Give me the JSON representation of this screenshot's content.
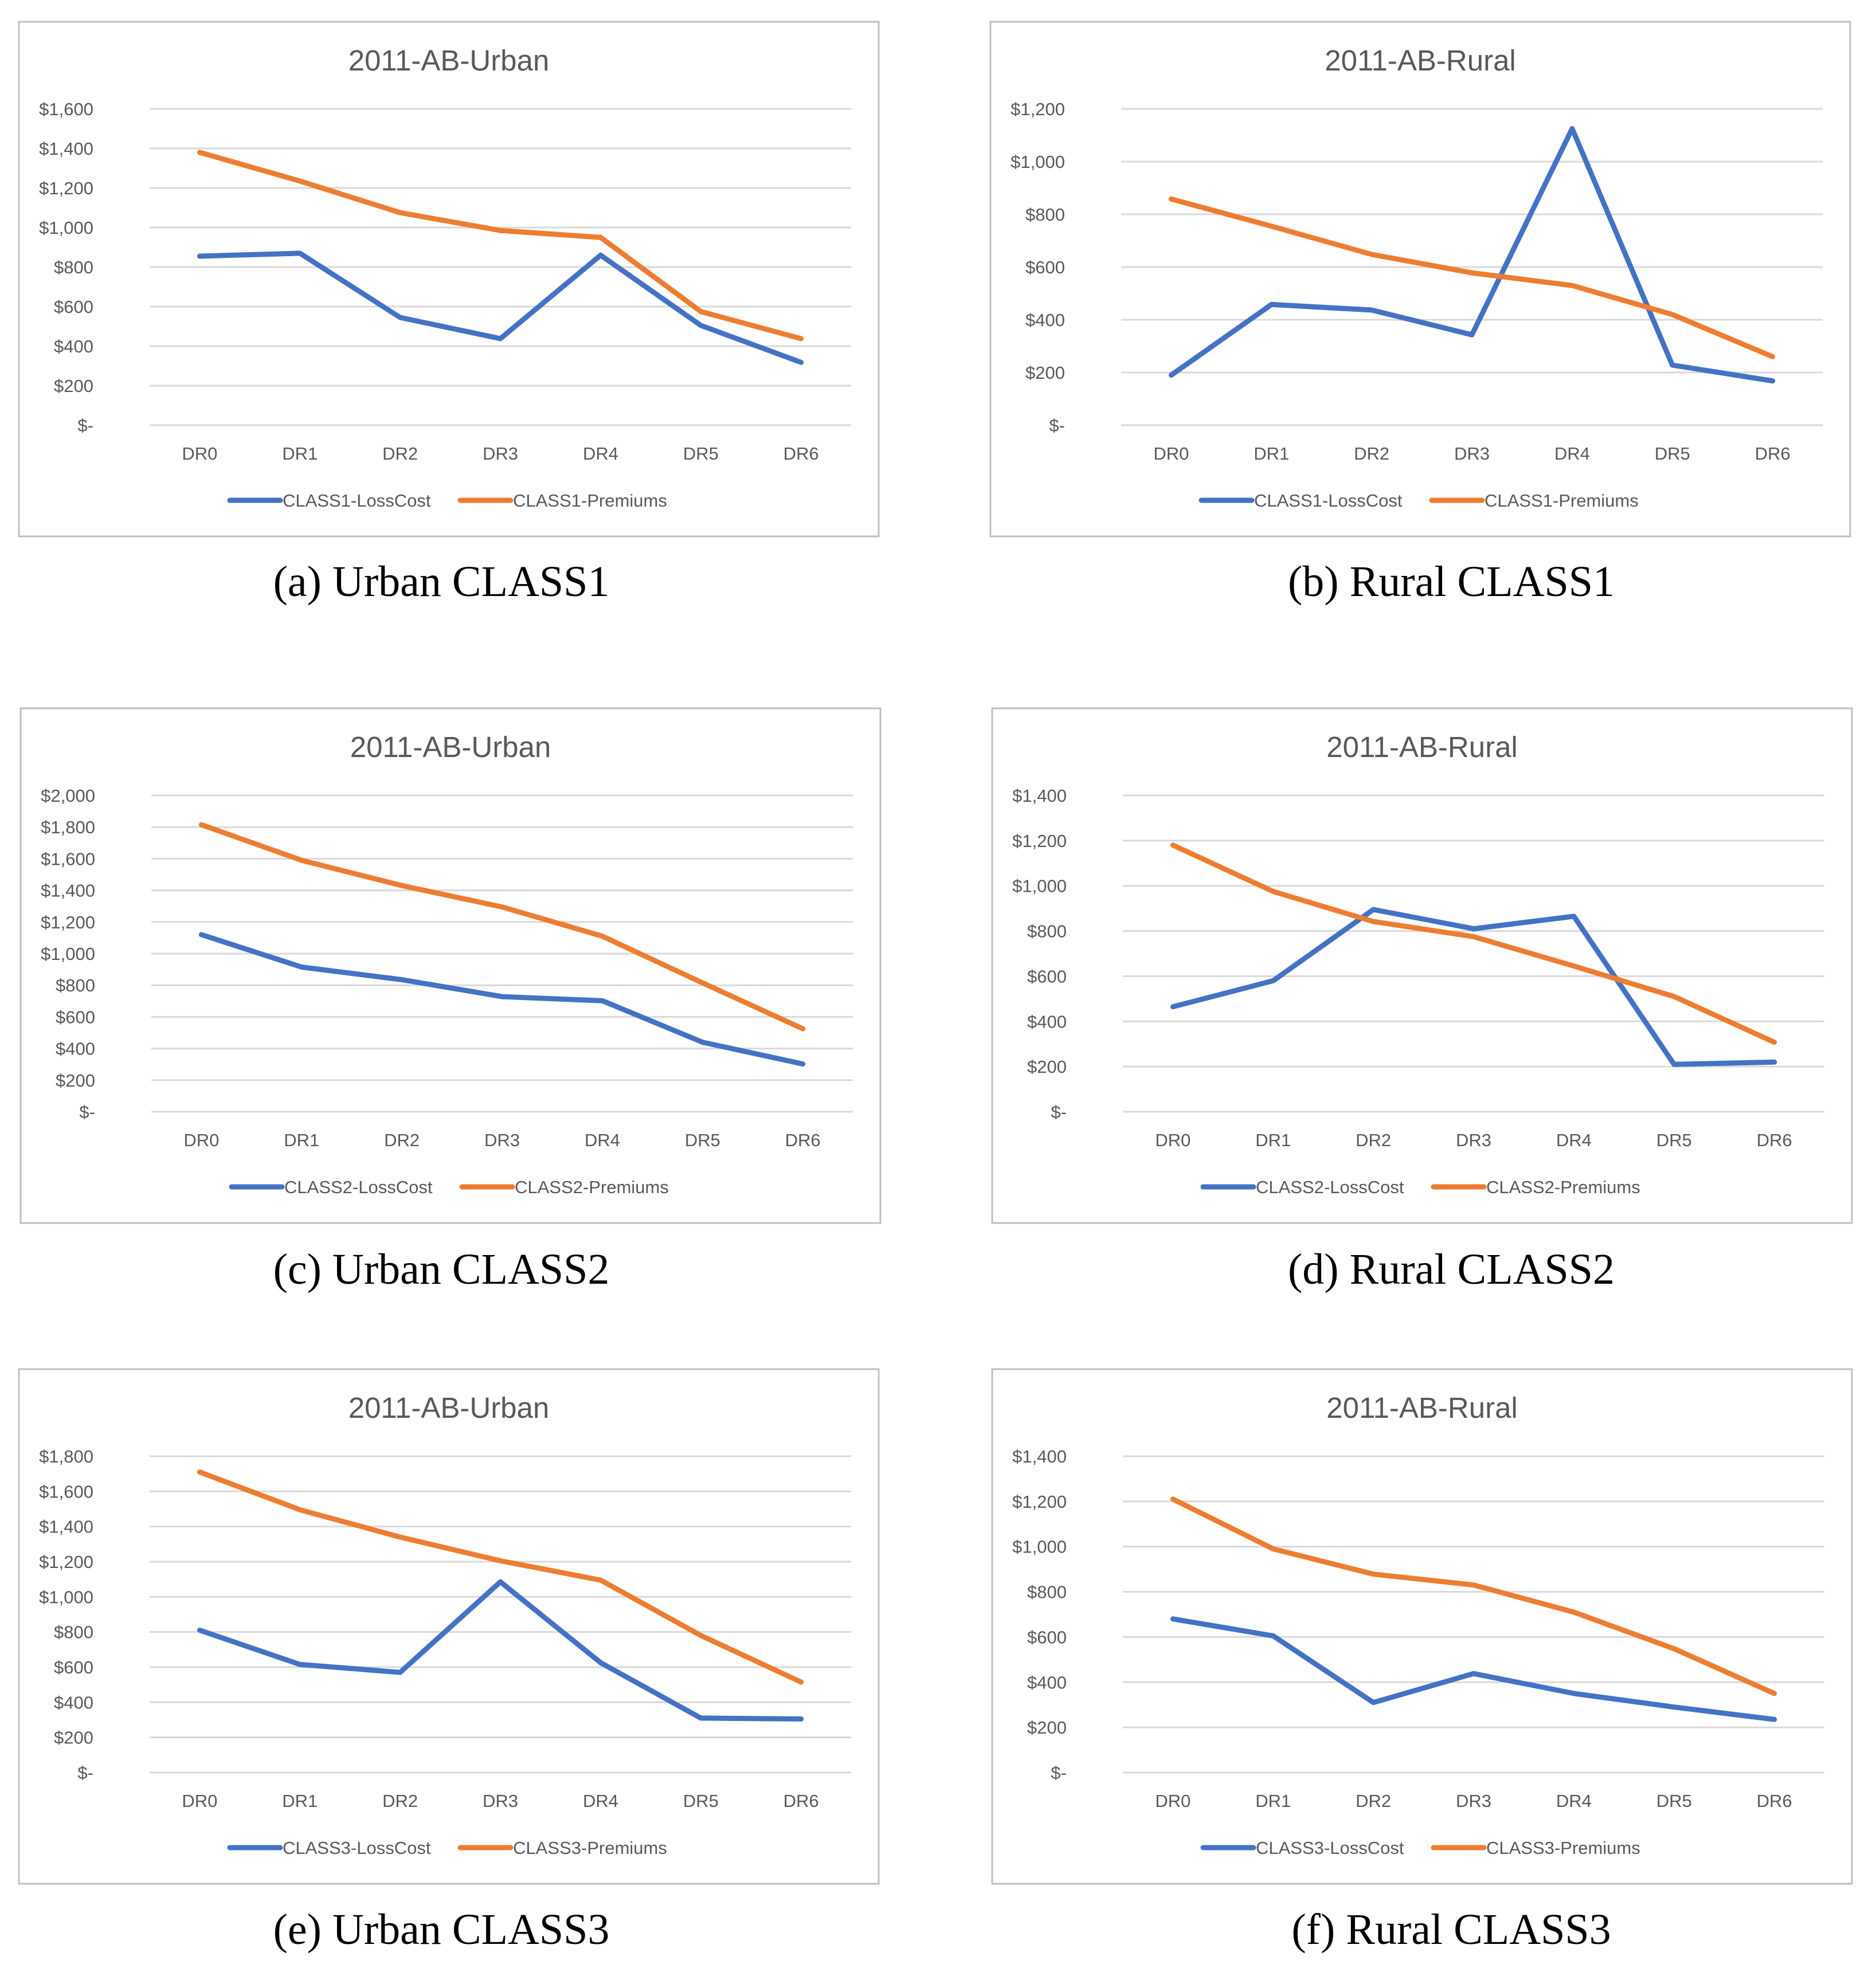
{
  "colors": {
    "losscost": "#4472C4",
    "premiums": "#ED7D31",
    "grid": "#D9D9D9",
    "frame": "#BFBFBF"
  },
  "chart_data": [
    {
      "type": "line",
      "title": "2011-AB-Urban",
      "caption": "(a) Urban CLASS1",
      "categories": [
        "DR0",
        "DR1",
        "DR2",
        "DR3",
        "DR4",
        "DR5",
        "DR6"
      ],
      "ylim": [
        0,
        1600
      ],
      "yticks": [
        "$-",
        "$200",
        "$400",
        "$600",
        "$800",
        "$1,000",
        "$1,200",
        "$1,400",
        "$1,600"
      ],
      "legend_position": "bottom",
      "series": [
        {
          "name": "CLASS1-LossCost",
          "color": "#4472C4",
          "values": [
            855,
            870,
            545,
            438,
            860,
            505,
            318
          ]
        },
        {
          "name": "CLASS1-Premiums",
          "color": "#ED7D31",
          "values": [
            1380,
            1235,
            1075,
            985,
            950,
            575,
            438
          ]
        }
      ]
    },
    {
      "type": "line",
      "title": "2011-AB-Rural",
      "caption": "(b) Rural CLASS1",
      "categories": [
        "DR0",
        "DR1",
        "DR2",
        "DR3",
        "DR4",
        "DR5",
        "DR6"
      ],
      "ylim": [
        0,
        1200
      ],
      "yticks": [
        "$-",
        "$200",
        "$400",
        "$600",
        "$800",
        "$1,000",
        "$1,200"
      ],
      "legend_position": "bottom",
      "series": [
        {
          "name": "CLASS1-LossCost",
          "color": "#4472C4",
          "values": [
            190,
            458,
            437,
            343,
            1125,
            228,
            168
          ]
        },
        {
          "name": "CLASS1-Premiums",
          "color": "#ED7D31",
          "values": [
            858,
            755,
            648,
            578,
            530,
            420,
            260
          ]
        }
      ]
    },
    {
      "type": "line",
      "title": "2011-AB-Urban",
      "caption": "(c) Urban CLASS2",
      "categories": [
        "DR0",
        "DR1",
        "DR2",
        "DR3",
        "DR4",
        "DR5",
        "DR6"
      ],
      "ylim": [
        0,
        2000
      ],
      "yticks": [
        "$-",
        "$200",
        "$400",
        "$600",
        "$800",
        "$1,000",
        "$1,200",
        "$1,400",
        "$1,600",
        "$1,800",
        "$2,000"
      ],
      "legend_position": "bottom",
      "series": [
        {
          "name": "CLASS2-LossCost",
          "color": "#4472C4",
          "values": [
            1120,
            915,
            835,
            728,
            702,
            440,
            302
          ]
        },
        {
          "name": "CLASS2-Premiums",
          "color": "#ED7D31",
          "values": [
            1815,
            1590,
            1430,
            1295,
            1110,
            815,
            525
          ]
        }
      ]
    },
    {
      "type": "line",
      "title": "2011-AB-Rural",
      "caption": "(d) Rural CLASS2",
      "categories": [
        "DR0",
        "DR1",
        "DR2",
        "DR3",
        "DR4",
        "DR5",
        "DR6"
      ],
      "ylim": [
        0,
        1400
      ],
      "yticks": [
        "$-",
        "$200",
        "$400",
        "$600",
        "$800",
        "$1,000",
        "$1,200",
        "$1,400"
      ],
      "legend_position": "bottom",
      "series": [
        {
          "name": "CLASS2-LossCost",
          "color": "#4472C4",
          "values": [
            465,
            580,
            895,
            810,
            865,
            210,
            220
          ]
        },
        {
          "name": "CLASS2-Premiums",
          "color": "#ED7D31",
          "values": [
            1180,
            975,
            842,
            775,
            645,
            510,
            308
          ]
        }
      ]
    },
    {
      "type": "line",
      "title": "2011-AB-Urban",
      "caption": "(e) Urban CLASS3",
      "categories": [
        "DR0",
        "DR1",
        "DR2",
        "DR3",
        "DR4",
        "DR5",
        "DR6"
      ],
      "ylim": [
        0,
        1800
      ],
      "yticks": [
        "$-",
        "$200",
        "$400",
        "$600",
        "$800",
        "$1,000",
        "$1,200",
        "$1,400",
        "$1,600",
        "$1,800"
      ],
      "legend_position": "bottom",
      "series": [
        {
          "name": "CLASS3-LossCost",
          "color": "#4472C4",
          "values": [
            810,
            615,
            570,
            1085,
            625,
            310,
            305
          ]
        },
        {
          "name": "CLASS3-Premiums",
          "color": "#ED7D31",
          "values": [
            1710,
            1495,
            1340,
            1205,
            1095,
            780,
            515
          ]
        }
      ]
    },
    {
      "type": "line",
      "title": "2011-AB-Rural",
      "caption": "(f) Rural CLASS3",
      "categories": [
        "DR0",
        "DR1",
        "DR2",
        "DR3",
        "DR4",
        "DR5",
        "DR6"
      ],
      "ylim": [
        0,
        1400
      ],
      "yticks": [
        "$-",
        "$200",
        "$400",
        "$600",
        "$800",
        "$1,000",
        "$1,200",
        "$1,400"
      ],
      "legend_position": "bottom",
      "series": [
        {
          "name": "CLASS3-LossCost",
          "color": "#4472C4",
          "values": [
            680,
            605,
            310,
            438,
            350,
            290,
            235
          ]
        },
        {
          "name": "CLASS3-Premiums",
          "color": "#ED7D31",
          "values": [
            1210,
            990,
            878,
            830,
            710,
            548,
            350
          ]
        }
      ]
    }
  ]
}
